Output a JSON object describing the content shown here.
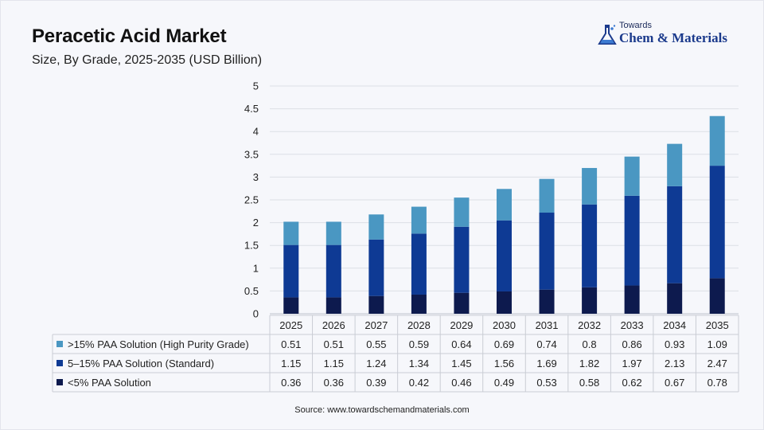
{
  "header": {
    "title": "Peracetic Acid Market",
    "subtitle": "Size, By Grade, 2025-2035 (USD Billion)"
  },
  "logo": {
    "top_text": "Towards",
    "main_text": "Chem & Materials",
    "icon": "flask-icon"
  },
  "source": "Source: www.towardschemandmaterials.com",
  "colors": {
    "high_purity": "#4a97c2",
    "standard": "#0e3a94",
    "low": "#0d1a4e"
  },
  "chart_data": {
    "type": "bar",
    "stacked": true,
    "categories": [
      "2025",
      "2026",
      "2027",
      "2028",
      "2029",
      "2030",
      "2031",
      "2032",
      "2033",
      "2034",
      "2035"
    ],
    "series": [
      {
        "name": "<5% PAA Solution",
        "values": [
          0.36,
          0.36,
          0.39,
          0.42,
          0.46,
          0.49,
          0.53,
          0.58,
          0.62,
          0.67,
          0.78
        ]
      },
      {
        "name": "5–15% PAA Solution (Standard)",
        "values": [
          1.15,
          1.15,
          1.24,
          1.34,
          1.45,
          1.56,
          1.69,
          1.82,
          1.97,
          2.13,
          2.47
        ]
      },
      {
        "name": ">15% PAA Solution (High Purity Grade)",
        "values": [
          0.51,
          0.51,
          0.55,
          0.59,
          0.64,
          0.69,
          0.74,
          0.8,
          0.86,
          0.93,
          1.09
        ]
      }
    ],
    "table_rows": [
      {
        "label": ">15% PAA Solution (High Purity Grade)",
        "values": [
          "0.51",
          "0.51",
          "0.55",
          "0.59",
          "0.64",
          "0.69",
          "0.74",
          "0.8",
          "0.86",
          "0.93",
          "1.09"
        ]
      },
      {
        "label": "5–15% PAA Solution (Standard)",
        "values": [
          "1.15",
          "1.15",
          "1.24",
          "1.34",
          "1.45",
          "1.56",
          "1.69",
          "1.82",
          "1.97",
          "2.13",
          "2.47"
        ]
      },
      {
        "label": "<5% PAA Solution",
        "values": [
          "0.36",
          "0.36",
          "0.39",
          "0.42",
          "0.46",
          "0.49",
          "0.53",
          "0.58",
          "0.62",
          "0.67",
          "0.78"
        ]
      }
    ],
    "y_ticks": [
      "0",
      "0.5",
      "1",
      "1.5",
      "2",
      "2.5",
      "3",
      "3.5",
      "4",
      "4.5",
      "5"
    ],
    "ylim": [
      0,
      5
    ],
    "grid": true,
    "legend_placement": "data-table"
  }
}
